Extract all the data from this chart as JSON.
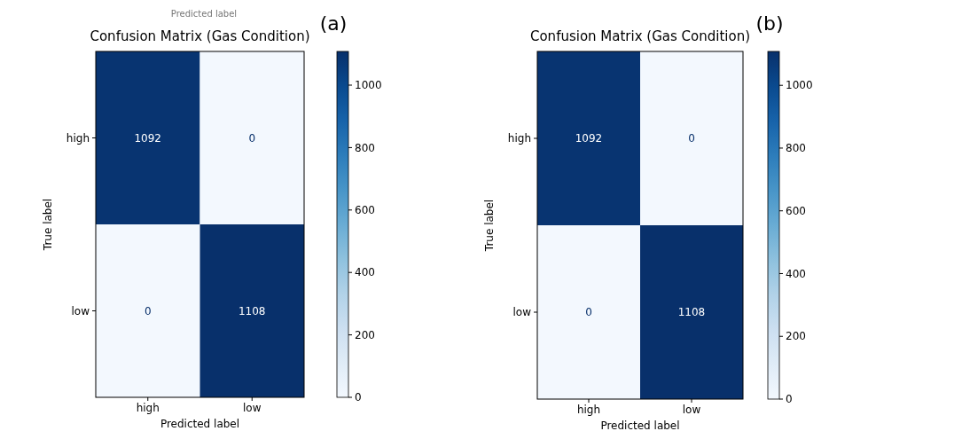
{
  "chart_data": [
    {
      "type": "heatmap",
      "title": "Confusion Matrix (Gas Condition)",
      "xlabel": "Predicted label",
      "ylabel": "True label",
      "categories": [
        "high",
        "low"
      ],
      "y_categories": [
        "high",
        "low"
      ],
      "cells": [
        [
          1092,
          0
        ],
        [
          0,
          1108
        ]
      ],
      "clim": [
        0,
        1108
      ],
      "cticks": [
        0,
        200,
        400,
        600,
        800,
        1000
      ],
      "data_labels": true,
      "annotations": [
        "(a)",
        "Predicted label"
      ]
    },
    {
      "type": "heatmap",
      "title": "Confusion Matrix (Gas Condition)",
      "xlabel": "Predicted label",
      "ylabel": "True label",
      "categories": [
        "high",
        "low"
      ],
      "y_categories": [
        "high",
        "low"
      ],
      "cells": [
        [
          1092,
          0
        ],
        [
          0,
          1108
        ]
      ],
      "clim": [
        0,
        1108
      ],
      "cticks": [
        0,
        200,
        400,
        600,
        800,
        1000
      ],
      "data_labels": true,
      "annotations": [
        "(b)"
      ]
    }
  ]
}
